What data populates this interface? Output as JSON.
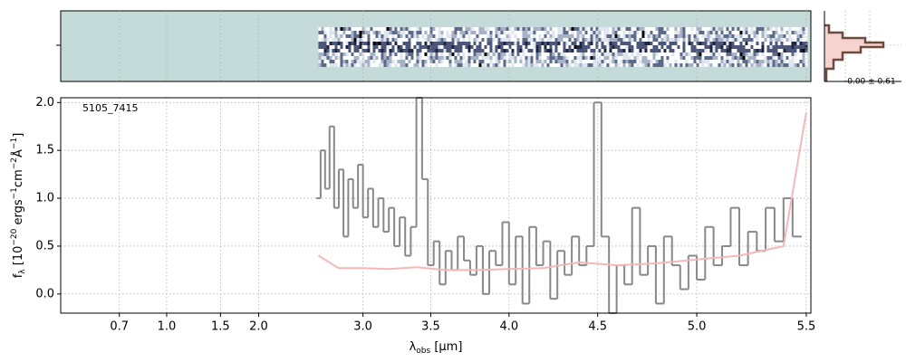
{
  "chart_data": {
    "type": "line",
    "annotation": "5105_7415",
    "histogram_label": "-0.00 ± 0.61",
    "xlabel": {
      "main": "λ",
      "sub": "obs",
      "unit": " [μm]"
    },
    "ylabel": [
      {
        "text": "f"
      },
      {
        "text": "λ",
        "sub": true
      },
      {
        "text": " [10"
      },
      {
        "text": "−20",
        "sup": true
      },
      {
        "text": " ergs"
      },
      {
        "text": "−1",
        "sup": true
      },
      {
        "text": "cm"
      },
      {
        "text": "−2",
        "sup": true
      },
      {
        "text": "Å"
      },
      {
        "text": "−1",
        "sup": true
      },
      {
        "text": "]"
      }
    ],
    "xlim": [
      0.45,
      5.52
    ],
    "ylim": [
      -0.2,
      2.05
    ],
    "xticks": [
      0.7,
      {
        "value": 1,
        "label": "1.0"
      },
      1.5,
      {
        "value": 2,
        "label": "2.0"
      },
      {
        "value": 3,
        "label": "3.0"
      },
      3.5,
      {
        "value": 4,
        "label": "4.0"
      },
      4.5,
      {
        "value": 5,
        "label": "5.0"
      },
      5.5
    ],
    "yticks": [
      {
        "value": 0,
        "label": "0.0"
      },
      0.5,
      {
        "value": 1,
        "label": "1.0"
      },
      1.5,
      {
        "value": 2,
        "label": "2.0"
      }
    ],
    "grid": true,
    "series": [
      {
        "color": "#888888",
        "step": true,
        "x": [
          2.62,
          2.66,
          2.7,
          2.74,
          2.78,
          2.82,
          2.86,
          2.9,
          2.94,
          2.98,
          3.02,
          3.06,
          3.1,
          3.14,
          3.18,
          3.22,
          3.26,
          3.3,
          3.34,
          3.38,
          3.42,
          3.46,
          3.5,
          3.54,
          3.58,
          3.62,
          3.66,
          3.7,
          3.74,
          3.78,
          3.82,
          3.86,
          3.9,
          3.94,
          3.98,
          4.02,
          4.06,
          4.1,
          4.14,
          4.18,
          4.22,
          4.26,
          4.3,
          4.34,
          4.38,
          4.42,
          4.46,
          4.5,
          4.54,
          4.58,
          4.62,
          4.66,
          4.7,
          4.74,
          4.78,
          4.82,
          4.86,
          4.9,
          4.94,
          4.98,
          5.02,
          5.06,
          5.1,
          5.14,
          5.18,
          5.22,
          5.26,
          5.3,
          5.34,
          5.38,
          5.42,
          5.46
        ],
        "values": [
          1.0,
          1.5,
          1.1,
          1.75,
          0.9,
          1.3,
          0.6,
          1.2,
          0.9,
          1.35,
          0.8,
          1.1,
          0.7,
          1.0,
          0.65,
          0.9,
          0.5,
          0.8,
          0.4,
          0.7,
          2.05,
          1.2,
          0.3,
          0.55,
          0.1,
          0.45,
          0.25,
          0.6,
          0.35,
          0.2,
          0.5,
          0.0,
          0.45,
          0.3,
          0.75,
          0.1,
          0.6,
          -0.1,
          0.7,
          0.3,
          0.55,
          -0.05,
          0.45,
          0.2,
          0.6,
          0.3,
          0.5,
          2.0,
          0.6,
          -0.2,
          0.3,
          0.1,
          0.9,
          0.2,
          0.5,
          -0.1,
          0.6,
          0.3,
          0.05,
          0.4,
          0.15,
          0.7,
          0.3,
          0.5,
          0.9,
          0.3,
          0.65,
          0.45,
          0.9,
          0.55,
          1.0,
          0.6
        ]
      },
      {
        "color": "#f4b8b8",
        "step": false,
        "x": [
          2.62,
          2.8,
          3.0,
          3.2,
          3.4,
          3.6,
          3.8,
          4.0,
          4.2,
          4.4,
          4.6,
          4.8,
          5.0,
          5.2,
          5.4,
          5.5
        ],
        "values": [
          0.4,
          0.27,
          0.27,
          0.26,
          0.28,
          0.25,
          0.25,
          0.26,
          0.27,
          0.33,
          0.3,
          0.32,
          0.36,
          0.4,
          0.5,
          1.9
        ]
      }
    ]
  }
}
